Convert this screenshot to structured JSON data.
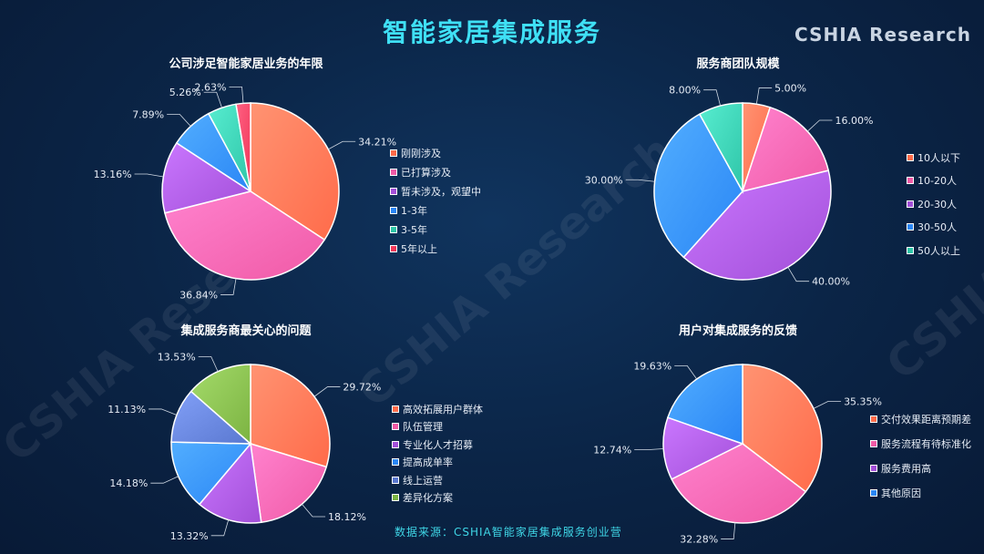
{
  "header": {
    "title": "智能家居集成服务",
    "brand": "CSHIA  Research",
    "watermark": "CSHIA Research"
  },
  "source": "数据来源：CSHIA智能家居集成服务创业营",
  "chart_data": [
    {
      "type": "pie",
      "title": "公司涉足智能家居业务的年限",
      "categories": [
        "刚刚涉及",
        "已打算涉及",
        "暂未涉及，观望中",
        "1-3年",
        "3-5年",
        "5年以上"
      ],
      "values": [
        34.21,
        36.84,
        13.16,
        7.89,
        5.26,
        2.63
      ],
      "colors": [
        "#ff6b4a",
        "#f05aa6",
        "#a24fd8",
        "#2a86f5",
        "#2fc5a8",
        "#f0385a"
      ]
    },
    {
      "type": "pie",
      "title": "服务商团队规模",
      "categories": [
        "10人以下",
        "10-20人",
        "20-30人",
        "30-50人",
        "50人以上"
      ],
      "values": [
        5.0,
        16.0,
        40.0,
        30.0,
        8.0
      ],
      "colors": [
        "#ff6b4a",
        "#f05aa6",
        "#a24fd8",
        "#2a86f5",
        "#2fc5a8"
      ]
    },
    {
      "type": "pie",
      "title": "集成服务商最关心的问题",
      "categories": [
        "高效拓展用户群体",
        "队伍管理",
        "专业化人才招募",
        "提高成单率",
        "线上运营",
        "差异化方案"
      ],
      "values": [
        29.72,
        18.12,
        13.32,
        14.18,
        11.13,
        13.53
      ],
      "colors": [
        "#ff6b4a",
        "#f05aa6",
        "#a24fd8",
        "#2a86f5",
        "#5a78d0",
        "#7cb342"
      ]
    },
    {
      "type": "pie",
      "title": "用户对集成服务的反馈",
      "categories": [
        "交付效果距离预期差",
        "服务流程有待标准化",
        "服务费用高",
        "其他原因"
      ],
      "values": [
        35.35,
        32.28,
        12.74,
        19.63
      ],
      "colors": [
        "#ff6b4a",
        "#f05aa6",
        "#a24fd8",
        "#2a86f5"
      ]
    }
  ]
}
